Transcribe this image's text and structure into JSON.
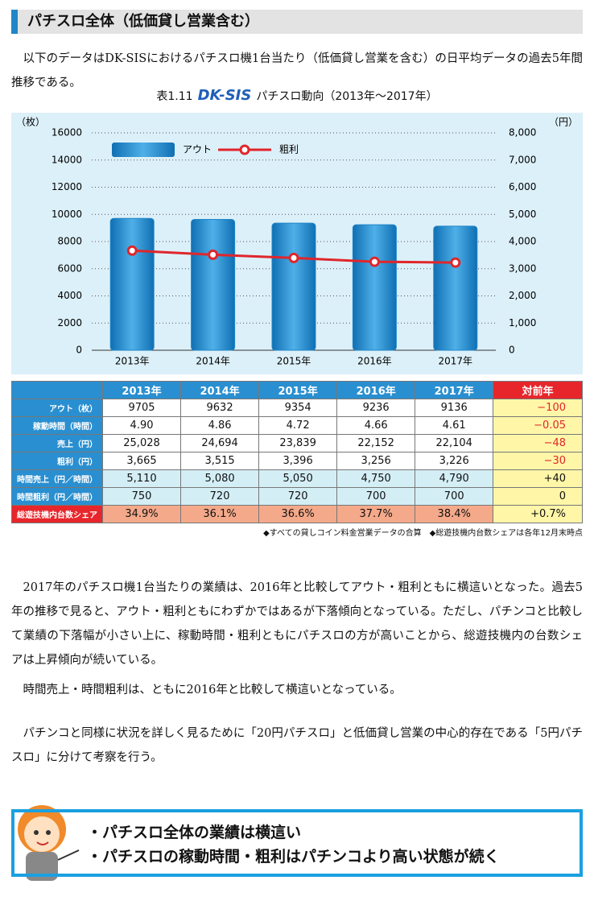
{
  "header": {
    "title": "パチスロ全体（低価貸し営業含む）"
  },
  "intro": "以下のデータはDK-SISにおけるパチスロ機1台当たり（低価貸し営業を含む）の日平均データの過去5年間推移である。",
  "caption": {
    "number": "表1.11",
    "logo": "DK-SIS",
    "title": "パチスロ動向（2013年～2017年）"
  },
  "chart_data": {
    "type": "bar",
    "ylabel": "（枚）",
    "y2label": "（円）",
    "categories": [
      "2013年",
      "2014年",
      "2015年",
      "2016年",
      "2017年"
    ],
    "series": [
      {
        "name": "アウト",
        "type": "bar",
        "color": "#1f86c8",
        "values": [
          9705,
          9632,
          9354,
          9236,
          9136
        ]
      },
      {
        "name": "粗利",
        "type": "line",
        "axis": "y2",
        "color": "#e0262b",
        "values": [
          3665,
          3515,
          3396,
          3256,
          3226
        ]
      }
    ],
    "ylim": [
      0,
      16000
    ],
    "yticks": [
      0,
      2000,
      4000,
      6000,
      8000,
      10000,
      12000,
      14000,
      16000
    ],
    "y2lim": [
      0,
      8000
    ],
    "y2ticks": [
      0,
      {
        "value": 1000,
        "label": "1,000"
      },
      {
        "value": 2000,
        "label": "2,000"
      },
      {
        "value": 3000,
        "label": "3,000"
      },
      {
        "value": 4000,
        "label": "4,000"
      },
      {
        "value": 5000,
        "label": "5,000"
      },
      {
        "value": 6000,
        "label": "6,000"
      },
      {
        "value": 7000,
        "label": "7,000"
      },
      {
        "value": 8000,
        "label": "8,000"
      }
    ],
    "grid": true,
    "legend": "top-left"
  },
  "table": {
    "header": [
      "2013年",
      "2014年",
      "2015年",
      "2016年",
      "2017年",
      "対前年"
    ],
    "rows": [
      [
        "アウト（枚）",
        "9705",
        "9632",
        "9354",
        "9236",
        "9136",
        "−100"
      ],
      [
        "稼動時間（時間）",
        "4.90",
        "4.86",
        "4.72",
        "4.66",
        "4.61",
        "−0.05"
      ],
      [
        "売上（円）",
        "25,028",
        "24,694",
        "23,839",
        "22,152",
        "22,104",
        "−48"
      ],
      [
        "粗利（円）",
        "3,665",
        "3,515",
        "3,396",
        "3,256",
        "3,226",
        "−30"
      ],
      [
        "時間売上（円／時間）",
        "5,110",
        "5,080",
        "5,050",
        "4,750",
        "4,790",
        "+40"
      ],
      [
        "時間粗利（円／時間）",
        "750",
        "720",
        "720",
        "700",
        "700",
        "0"
      ],
      [
        "総遊技機内台数シェア",
        "34.9%",
        "36.1%",
        "36.6%",
        "37.7%",
        "38.4%",
        "+0.7%"
      ]
    ]
  },
  "notes": [
    "◆すべての貸しコイン料金営業データの合算",
    "◆総遊技機内台数シェアは各年12月末時点"
  ],
  "paragraphs": [
    "2017年のパチスロ機1台当たりの業績は、2016年と比較してアウト・粗利ともに横這いとなった。過去5年の推移で見ると、アウト・粗利ともにわずかではあるが下落傾向となっている。ただし、パチンコと比較して業績の下落幅が小さい上に、稼動時間・粗利ともにパチスロの方が高いことから、総遊技機内の台数シェアは上昇傾向が続いている。",
    "時間売上・時間粗利は、ともに2016年と比較して横這いとなっている。",
    "パチンコと同様に状況を詳しく見るために「20円パチスロ」と低価貸し営業の中心的存在である「5円パチスロ」に分けて考察を行う。"
  ],
  "summary": [
    "・パチスロ全体の業績は横這い",
    "・パチスロの稼動時間・粗利はパチンコより高い状態が続く"
  ]
}
